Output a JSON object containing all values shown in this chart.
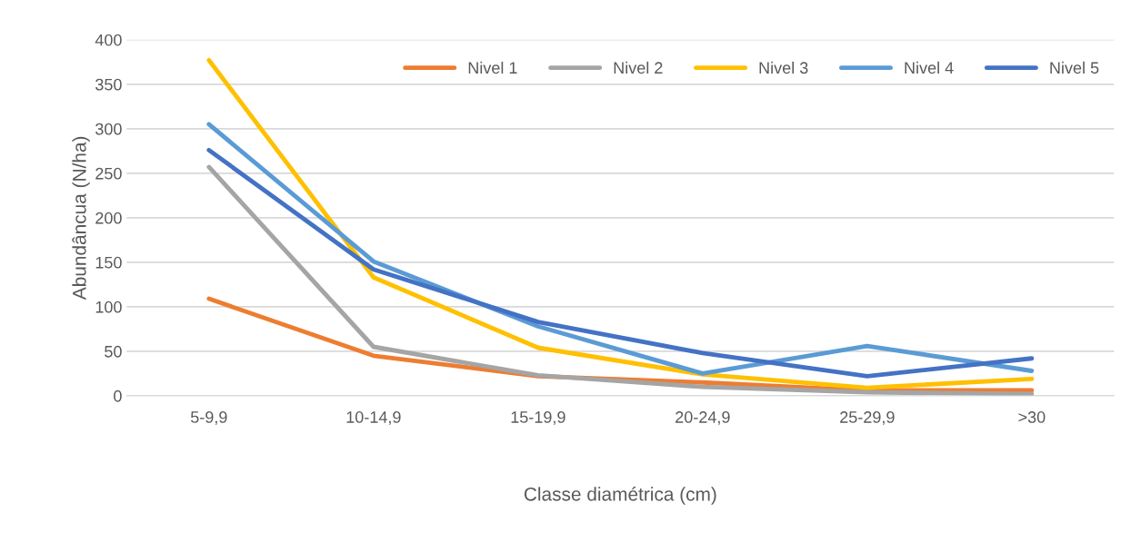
{
  "chart_data": {
    "type": "line",
    "xlabel": "Classe diamétrica (cm)",
    "ylabel": "Abundâncua (N/ha)",
    "categories": [
      "5-9,9",
      "10-14,9",
      "15-19,9",
      "20-24,9",
      "25-29,9",
      ">30"
    ],
    "series": [
      {
        "name": "Nivel 1",
        "color": "#ed7d31",
        "values": [
          109,
          45,
          22,
          15,
          6,
          6
        ]
      },
      {
        "name": "Nivel 2",
        "color": "#a5a5a5",
        "values": [
          257,
          55,
          23,
          10,
          4,
          2
        ]
      },
      {
        "name": "Nivel 3",
        "color": "#ffc000",
        "values": [
          377,
          133,
          54,
          24,
          9,
          19
        ]
      },
      {
        "name": "Nivel 4",
        "color": "#5b9bd5",
        "values": [
          305,
          151,
          78,
          25,
          56,
          28
        ]
      },
      {
        "name": "Nivel 5",
        "color": "#4472c4",
        "values": [
          276,
          142,
          83,
          48,
          22,
          42
        ]
      }
    ],
    "ylim": [
      0,
      400
    ],
    "yticks": [
      0,
      50,
      100,
      150,
      200,
      250,
      300,
      350,
      400
    ],
    "grid": "y",
    "legend": "top right",
    "marker": "none",
    "line_style": "solid"
  }
}
